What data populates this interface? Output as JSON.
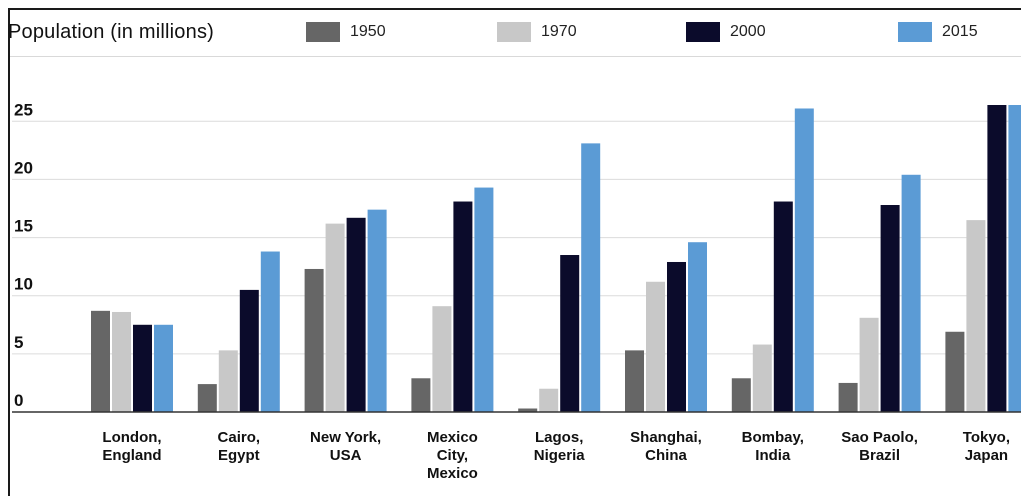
{
  "chart_data": {
    "type": "bar",
    "title": "Population (in millions)",
    "categories": [
      [
        "London,",
        "England"
      ],
      [
        "Cairo,",
        "Egypt"
      ],
      [
        "New York,",
        "USA"
      ],
      [
        "Mexico",
        "City,",
        "Mexico"
      ],
      [
        "Lagos,",
        "Nigeria"
      ],
      [
        "Shanghai,",
        "China"
      ],
      [
        "Bombay,",
        "India"
      ],
      [
        "Sao Paolo,",
        "Brazil"
      ],
      [
        "Tokyo,",
        "Japan"
      ]
    ],
    "series": [
      {
        "name": "1950",
        "color": "#666666",
        "values": [
          8.7,
          2.4,
          12.3,
          2.9,
          0.3,
          5.3,
          2.9,
          2.5,
          6.9
        ]
      },
      {
        "name": "1970",
        "color": "#c8c8c8",
        "values": [
          8.6,
          5.3,
          16.2,
          9.1,
          2.0,
          11.2,
          5.8,
          8.1,
          16.5
        ]
      },
      {
        "name": "2000",
        "color": "#0b0b2b",
        "values": [
          7.5,
          10.5,
          16.7,
          18.1,
          13.5,
          12.9,
          18.1,
          17.8,
          26.4
        ]
      },
      {
        "name": "2015",
        "color": "#5b9bd5",
        "values": [
          7.5,
          13.8,
          17.4,
          19.3,
          23.1,
          14.6,
          26.1,
          20.4,
          26.4
        ]
      }
    ],
    "yticks": [
      0,
      5,
      10,
      15,
      20,
      25
    ],
    "ylim": [
      0,
      26.4
    ],
    "grid": true,
    "legend_position": "top"
  }
}
